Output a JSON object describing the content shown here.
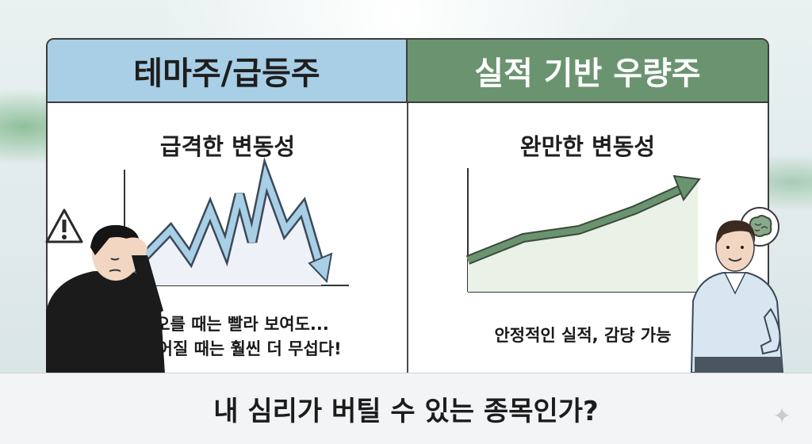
{
  "left_panel": {
    "header": "테마주/급등주",
    "subtitle": "급격한 변동성",
    "caption_line1": "오를 때는 빨라 보여도...",
    "caption_line2": "떨어질 때는 훨씬 더 무섭다!",
    "warning_icon": "warning-triangle-icon",
    "header_color": "#a8cfe6",
    "line_color": "#a8cfe6"
  },
  "right_panel": {
    "header": "실적 기반 우량주",
    "subtitle": "완만한 변동성",
    "caption": "안정적인 실적, 감당 가능",
    "thought_icon": "brain-icon",
    "header_color": "#6a9470",
    "line_color": "#6a9470"
  },
  "bottom": {
    "question": "내 심리가 버틸 수 있는 종목인가?"
  },
  "sparkle_icon": "sparkle-icon"
}
